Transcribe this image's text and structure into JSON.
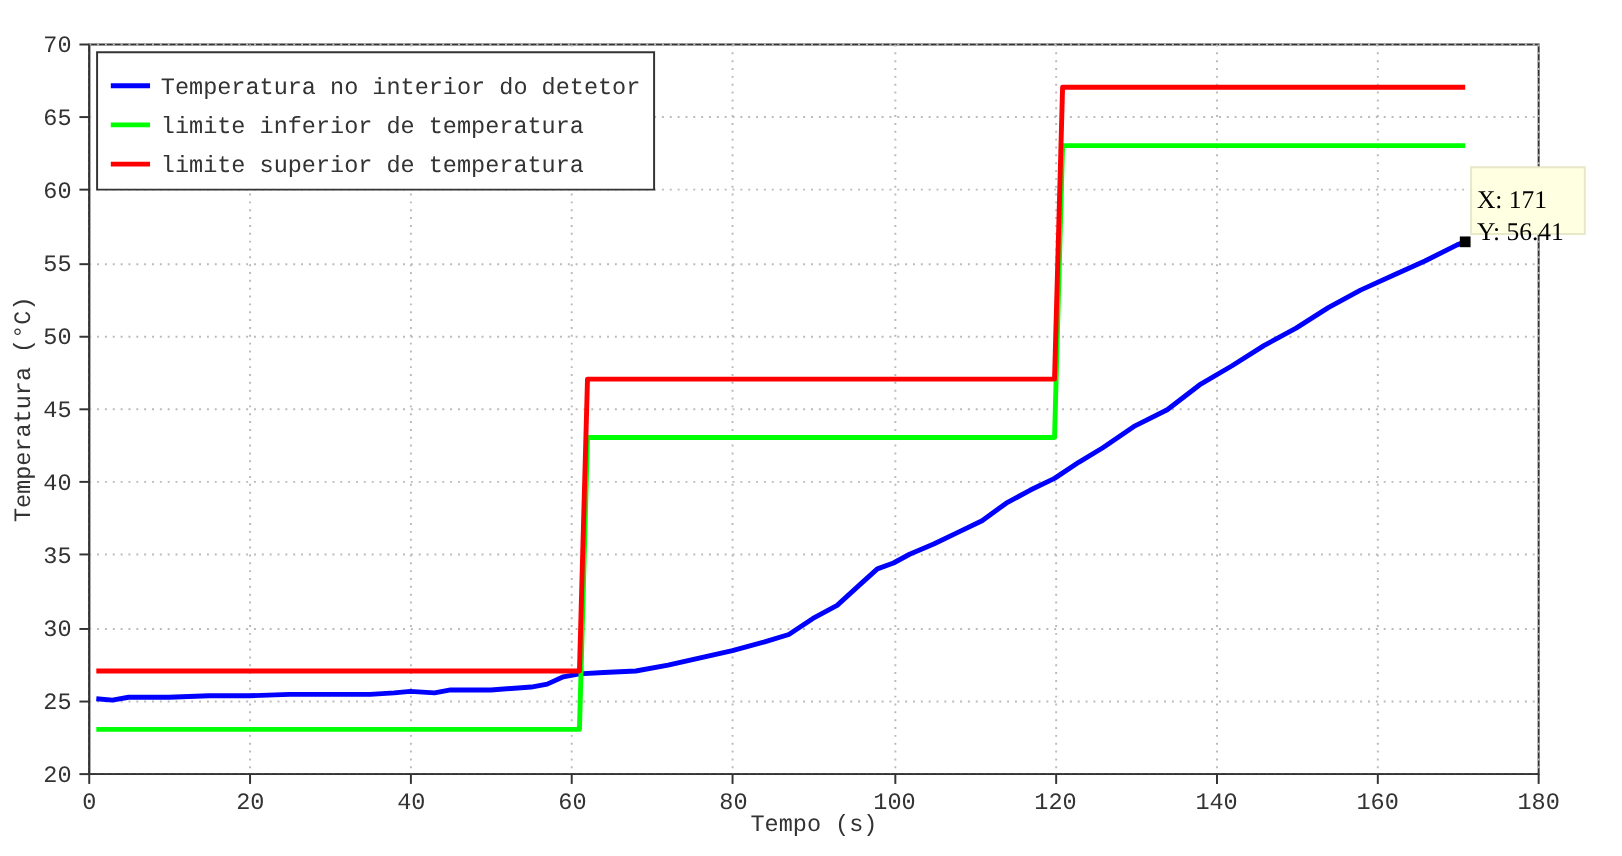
{
  "chart_data": {
    "type": "line",
    "xlabel": "Tempo (s)",
    "ylabel": "Temperatura (°C)",
    "xlim": [
      0,
      180
    ],
    "xticks": [
      0,
      20,
      40,
      60,
      80,
      100,
      120,
      140,
      160,
      180
    ],
    "ylim": [
      20,
      70
    ],
    "yticks": [
      20,
      25,
      30,
      35,
      40,
      45,
      50,
      55,
      60,
      65,
      70
    ],
    "grid": true,
    "legend": "top left",
    "line_style": "solid",
    "series": [
      {
        "name": "Temperatura no interior do detetor",
        "color": "#0000ff",
        "x": [
          1,
          3,
          5,
          10,
          15,
          20,
          25,
          30,
          35,
          38,
          40,
          43,
          45,
          50,
          55,
          57,
          59,
          61,
          64,
          68,
          72,
          76,
          80,
          84,
          87,
          90,
          93,
          96,
          98,
          100,
          102,
          105,
          108,
          111,
          114,
          117,
          120,
          123,
          126,
          130,
          134,
          138,
          142,
          146,
          150,
          154,
          158,
          162,
          166,
          170,
          171
        ],
        "values": [
          25.1,
          25.0,
          25.2,
          25.2,
          25.3,
          25.3,
          25.4,
          25.4,
          25.4,
          25.5,
          25.6,
          25.5,
          25.7,
          25.7,
          25.9,
          26.1,
          26.6,
          26.8,
          26.9,
          27.0,
          27.4,
          27.9,
          28.4,
          29.0,
          29.5,
          30.6,
          31.5,
          33.0,
          34.0,
          34.4,
          35.0,
          35.7,
          36.5,
          37.3,
          38.5,
          39.4,
          40.2,
          41.3,
          42.3,
          43.8,
          44.9,
          46.6,
          47.9,
          49.3,
          50.5,
          51.9,
          53.1,
          54.1,
          55.1,
          56.2,
          56.41
        ]
      },
      {
        "name": "limite inferior de temperatura",
        "color": "#00ff00",
        "x": [
          1,
          61,
          62,
          120,
          121,
          171
        ],
        "values": [
          23,
          23,
          43,
          43,
          63,
          63
        ]
      },
      {
        "name": "limite superior de temperatura",
        "color": "#ff0000",
        "x": [
          1,
          61,
          62,
          120,
          121,
          171
        ],
        "values": [
          27,
          27,
          47,
          47,
          67,
          67
        ]
      }
    ],
    "annotations": [
      {
        "text": "X: 171\nY: 56.41",
        "x": 171,
        "y": 56.41
      }
    ]
  }
}
